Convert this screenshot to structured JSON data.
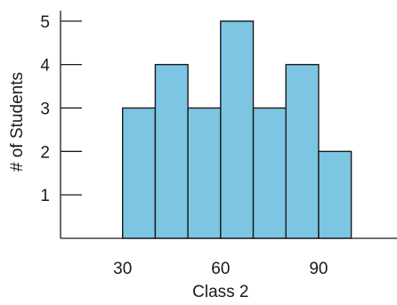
{
  "chart_data": {
    "type": "bar",
    "title": "",
    "xlabel": "Class 2",
    "ylabel": "# of Students",
    "bins": [
      {
        "start": 30,
        "end": 40,
        "count": 3
      },
      {
        "start": 40,
        "end": 50,
        "count": 4
      },
      {
        "start": 50,
        "end": 60,
        "count": 3
      },
      {
        "start": 60,
        "end": 70,
        "count": 5
      },
      {
        "start": 70,
        "end": 80,
        "count": 3
      },
      {
        "start": 80,
        "end": 90,
        "count": 4
      },
      {
        "start": 90,
        "end": 100,
        "count": 2
      }
    ],
    "xlim": [
      11,
      114
    ],
    "ylim": [
      0,
      5.2
    ],
    "x_ticks": [
      30,
      60,
      90
    ],
    "x_tick_labels": [
      "30",
      "60",
      "90"
    ],
    "y_ticks": [
      1,
      2,
      3,
      4,
      5
    ],
    "y_tick_labels": [
      "1",
      "2",
      "3",
      "4",
      "5"
    ],
    "bar_color": "#7cc6e4",
    "grid": false,
    "legend": "none"
  }
}
